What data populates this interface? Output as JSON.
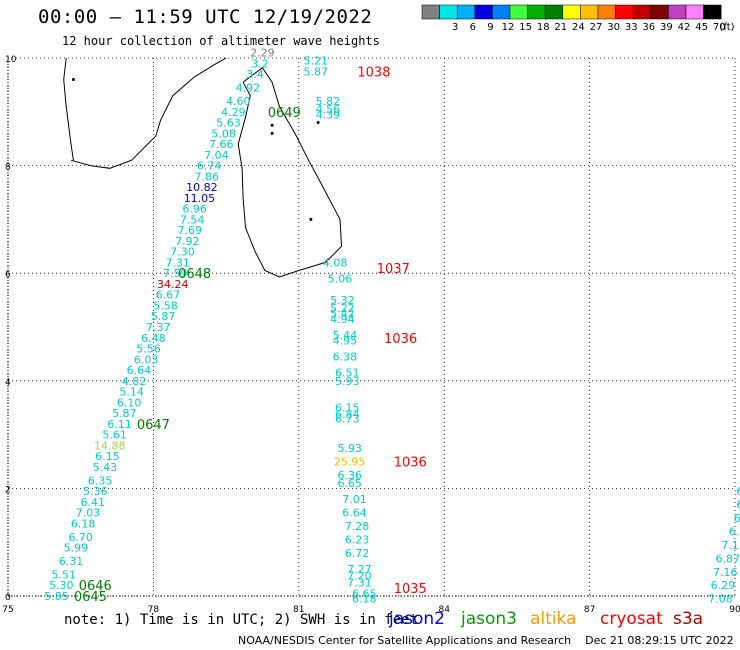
{
  "header": {
    "title": "00:00 – 11:59 UTC 12/19/2022",
    "subtitle": "12 hour collection of altimeter wave heights"
  },
  "legend": {
    "unit": "(ft)",
    "bins": [
      {
        "color": "#808080",
        "label": ""
      },
      {
        "color": "#00e5e5",
        "label": "3"
      },
      {
        "color": "#00b0ff",
        "label": "6"
      },
      {
        "color": "#0000e0",
        "label": "9"
      },
      {
        "color": "#0080ff",
        "label": "12"
      },
      {
        "color": "#40ff40",
        "label": "15"
      },
      {
        "color": "#00b000",
        "label": "18"
      },
      {
        "color": "#008000",
        "label": "21"
      },
      {
        "color": "#ffff00",
        "label": "24"
      },
      {
        "color": "#ffc000",
        "label": "27"
      },
      {
        "color": "#ff8000",
        "label": "30"
      },
      {
        "color": "#ff0000",
        "label": "33"
      },
      {
        "color": "#c00000",
        "label": "36"
      },
      {
        "color": "#800000",
        "label": "39"
      },
      {
        "color": "#c040c0",
        "label": "42"
      },
      {
        "color": "#ff80ff",
        "label": "45"
      },
      {
        "color": "#000000",
        "label": "70"
      }
    ]
  },
  "axes": {
    "x_ticks": [
      "75",
      "78",
      "81",
      "84",
      "87",
      "90"
    ],
    "y_ticks": [
      "0",
      "2",
      "4",
      "6",
      "8",
      "10"
    ]
  },
  "map": {
    "lon_range": [
      75,
      90
    ],
    "lat_range": [
      0,
      10
    ],
    "land": [
      {
        "name": "india-tip",
        "points": [
          [
            76.3,
            8.1
          ],
          [
            76.7,
            8.0
          ],
          [
            77.1,
            7.95
          ],
          [
            77.55,
            8.1
          ],
          [
            78.05,
            8.55
          ],
          [
            78.15,
            8.85
          ],
          [
            78.4,
            9.3
          ],
          [
            78.85,
            9.65
          ],
          [
            79.3,
            9.9
          ],
          [
            79.5,
            10.0
          ]
        ]
      },
      {
        "name": "india-west-coast",
        "points": [
          [
            76.2,
            10.0
          ],
          [
            76.15,
            9.6
          ],
          [
            76.2,
            9.1
          ],
          [
            76.3,
            8.4
          ],
          [
            76.35,
            8.1
          ]
        ]
      },
      {
        "name": "sri-lanka",
        "points": [
          [
            79.85,
            9.55
          ],
          [
            80.25,
            9.82
          ],
          [
            80.45,
            9.55
          ],
          [
            80.6,
            9.1
          ],
          [
            80.95,
            8.55
          ],
          [
            81.2,
            8.1
          ],
          [
            81.5,
            7.6
          ],
          [
            81.85,
            7.0
          ],
          [
            81.88,
            6.5
          ],
          [
            81.55,
            6.2
          ],
          [
            81.0,
            6.05
          ],
          [
            80.6,
            5.93
          ],
          [
            80.3,
            6.05
          ],
          [
            80.1,
            6.4
          ],
          [
            79.9,
            6.85
          ],
          [
            79.85,
            7.4
          ],
          [
            79.83,
            7.95
          ],
          [
            79.75,
            8.4
          ],
          [
            79.9,
            8.9
          ],
          [
            80.0,
            9.3
          ],
          [
            79.85,
            9.55
          ]
        ]
      }
    ],
    "tracks": [
      {
        "mission": "jason3",
        "start_label": "0645",
        "start_at": [
          76.7,
          0.0
        ],
        "extra_labels": [
          {
            "text": "0646",
            "at": [
              76.8,
              0.2
            ]
          },
          {
            "text": "0647",
            "at": [
              78.0,
              3.2
            ]
          },
          {
            "text": "0648",
            "at": [
              78.85,
              6.0
            ]
          },
          {
            "text": "0649",
            "at": [
              80.7,
              9.0
            ]
          }
        ],
        "points": [
          {
            "lon": 76.0,
            "lat": 0.0,
            "v": "5.85"
          },
          {
            "lon": 76.1,
            "lat": 0.2,
            "v": "5.30"
          },
          {
            "lon": 76.15,
            "lat": 0.4,
            "v": "5.51"
          },
          {
            "lon": 76.3,
            "lat": 0.65,
            "v": "6.31"
          },
          {
            "lon": 76.4,
            "lat": 0.9,
            "v": "5.99"
          },
          {
            "lon": 76.5,
            "lat": 1.1,
            "v": "6.70"
          },
          {
            "lon": 76.55,
            "lat": 1.35,
            "v": "6.18"
          },
          {
            "lon": 76.65,
            "lat": 1.55,
            "v": "7.03"
          },
          {
            "lon": 76.75,
            "lat": 1.75,
            "v": "6.41"
          },
          {
            "lon": 76.8,
            "lat": 1.95,
            "v": "5.36"
          },
          {
            "lon": 76.9,
            "lat": 2.15,
            "v": "6.35"
          },
          {
            "lon": 77.0,
            "lat": 2.4,
            "v": "5.43"
          },
          {
            "lon": 77.05,
            "lat": 2.6,
            "v": "6.15"
          },
          {
            "lon": 77.1,
            "lat": 2.8,
            "v": "14.88",
            "color": "#a0d050"
          },
          {
            "lon": 77.2,
            "lat": 3.0,
            "v": "5.61"
          },
          {
            "lon": 77.3,
            "lat": 3.2,
            "v": "6.11"
          },
          {
            "lon": 77.4,
            "lat": 3.4,
            "v": "5.87"
          },
          {
            "lon": 77.5,
            "lat": 3.6,
            "v": "6.10"
          },
          {
            "lon": 77.55,
            "lat": 3.8,
            "v": "5.14"
          },
          {
            "lon": 77.6,
            "lat": 4.0,
            "v": "4.82"
          },
          {
            "lon": 77.7,
            "lat": 4.2,
            "v": "6.64"
          },
          {
            "lon": 77.85,
            "lat": 4.4,
            "v": "6.03"
          },
          {
            "lon": 77.9,
            "lat": 4.6,
            "v": "5.56"
          },
          {
            "lon": 78.0,
            "lat": 4.8,
            "v": "6.48"
          },
          {
            "lon": 78.1,
            "lat": 5.0,
            "v": "7.37"
          },
          {
            "lon": 78.2,
            "lat": 5.2,
            "v": "5.87"
          },
          {
            "lon": 78.25,
            "lat": 5.4,
            "v": "5.58"
          },
          {
            "lon": 78.3,
            "lat": 5.6,
            "v": "6.67"
          },
          {
            "lon": 78.4,
            "lat": 5.8,
            "v": "34.24",
            "color": "#c00000"
          },
          {
            "lon": 78.45,
            "lat": 6.0,
            "v": "7.59"
          },
          {
            "lon": 78.5,
            "lat": 6.2,
            "v": "7.31"
          },
          {
            "lon": 78.6,
            "lat": 6.4,
            "v": "7.30"
          },
          {
            "lon": 78.7,
            "lat": 6.6,
            "v": "7.92"
          },
          {
            "lon": 78.75,
            "lat": 6.8,
            "v": "7.69"
          },
          {
            "lon": 78.8,
            "lat": 7.0,
            "v": "7.54"
          },
          {
            "lon": 78.85,
            "lat": 7.2,
            "v": "6.96"
          },
          {
            "lon": 78.95,
            "lat": 7.4,
            "v": "11.05",
            "color": "#0000c0"
          },
          {
            "lon": 79.0,
            "lat": 7.6,
            "v": "10.82",
            "color": "#0000c0"
          },
          {
            "lon": 79.1,
            "lat": 7.8,
            "v": "7.86"
          },
          {
            "lon": 79.15,
            "lat": 8.0,
            "v": "6.74"
          },
          {
            "lon": 79.3,
            "lat": 8.2,
            "v": "7.04"
          },
          {
            "lon": 79.4,
            "lat": 8.4,
            "v": "7.66"
          },
          {
            "lon": 79.45,
            "lat": 8.6,
            "v": "5.08"
          },
          {
            "lon": 79.55,
            "lat": 8.8,
            "v": "5.63"
          },
          {
            "lon": 79.65,
            "lat": 9.0,
            "v": "4.29"
          },
          {
            "lon": 79.75,
            "lat": 9.2,
            "v": "4.60"
          },
          {
            "lon": 79.95,
            "lat": 9.45,
            "v": "4.92"
          },
          {
            "lon": 80.1,
            "lat": 9.7,
            "v": "3.4"
          },
          {
            "lon": 80.2,
            "lat": 9.9,
            "v": "3.2"
          },
          {
            "lon": 80.25,
            "lat": 10.1,
            "v": "2.29",
            "color": "#808080"
          }
        ]
      },
      {
        "mission": "cryosat",
        "labels": [
          {
            "text": "1038",
            "at": [
              82.55,
              9.75
            ]
          },
          {
            "text": "1037",
            "at": [
              82.95,
              6.1
            ]
          },
          {
            "text": "1036",
            "at": [
              83.1,
              4.8
            ]
          },
          {
            "text": "1036",
            "at": [
              83.3,
              2.5
            ]
          },
          {
            "text": "1035",
            "at": [
              83.3,
              0.15
            ]
          }
        ]
      },
      {
        "mission": "cryosat-values",
        "points": [
          {
            "lon": 81.35,
            "lat": 9.95,
            "v": "5.21"
          },
          {
            "lon": 81.35,
            "lat": 9.75,
            "v": "5.87"
          },
          {
            "lon": 81.6,
            "lat": 9.2,
            "v": "5.82"
          },
          {
            "lon": 81.6,
            "lat": 9.05,
            "v": "4.56"
          },
          {
            "lon": 81.6,
            "lat": 8.95,
            "v": "4.39"
          },
          {
            "lon": 81.75,
            "lat": 6.2,
            "v": "4.08"
          },
          {
            "lon": 81.85,
            "lat": 5.9,
            "v": "5.06"
          },
          {
            "lon": 81.9,
            "lat": 5.5,
            "v": "5.32"
          },
          {
            "lon": 81.9,
            "lat": 5.35,
            "v": "5.22"
          },
          {
            "lon": 81.9,
            "lat": 5.25,
            "v": "5.42"
          },
          {
            "lon": 81.9,
            "lat": 5.15,
            "v": "4.94"
          },
          {
            "lon": 81.95,
            "lat": 4.85,
            "v": "5.44"
          },
          {
            "lon": 81.95,
            "lat": 4.75,
            "v": "4.95"
          },
          {
            "lon": 81.95,
            "lat": 4.45,
            "v": "6.38"
          },
          {
            "lon": 82.0,
            "lat": 4.15,
            "v": "6.51"
          },
          {
            "lon": 82.0,
            "lat": 4.0,
            "v": "5.93"
          },
          {
            "lon": 82.0,
            "lat": 3.5,
            "v": "6.15"
          },
          {
            "lon": 82.0,
            "lat": 3.38,
            "v": "6.84"
          },
          {
            "lon": 82.0,
            "lat": 3.3,
            "v": "6.73"
          },
          {
            "lon": 82.05,
            "lat": 2.75,
            "v": "5.93"
          },
          {
            "lon": 82.05,
            "lat": 2.5,
            "v": "25.95",
            "color": "#e8c000"
          },
          {
            "lon": 82.05,
            "lat": 2.25,
            "v": "6.36"
          },
          {
            "lon": 82.05,
            "lat": 2.1,
            "v": "6.65"
          },
          {
            "lon": 82.15,
            "lat": 1.8,
            "v": "7.01"
          },
          {
            "lon": 82.15,
            "lat": 1.55,
            "v": "6.64"
          },
          {
            "lon": 82.2,
            "lat": 1.3,
            "v": "7.28"
          },
          {
            "lon": 82.2,
            "lat": 1.05,
            "v": "6.23"
          },
          {
            "lon": 82.2,
            "lat": 0.8,
            "v": "6.72"
          },
          {
            "lon": 82.25,
            "lat": 0.5,
            "v": "7.27"
          },
          {
            "lon": 82.25,
            "lat": 0.38,
            "v": "7.20"
          },
          {
            "lon": 82.25,
            "lat": 0.25,
            "v": "7.31"
          },
          {
            "lon": 82.35,
            "lat": 0.05,
            "v": "6.65"
          },
          {
            "lon": 82.35,
            "lat": -0.05,
            "v": "6.18"
          }
        ]
      },
      {
        "mission": "edge",
        "points": [
          {
            "lon": 90.1,
            "lat": 1.95,
            "v": "6"
          },
          {
            "lon": 90.1,
            "lat": 1.7,
            "v": "6"
          },
          {
            "lon": 90.05,
            "lat": 1.45,
            "v": "6"
          },
          {
            "lon": 90.05,
            "lat": 1.2,
            "v": "6.7"
          },
          {
            "lon": 89.9,
            "lat": 0.95,
            "v": "7.1"
          },
          {
            "lon": 89.85,
            "lat": 0.7,
            "v": "6.87"
          },
          {
            "lon": 89.8,
            "lat": 0.45,
            "v": "7.16"
          },
          {
            "lon": 89.75,
            "lat": 0.2,
            "v": "6.29"
          },
          {
            "lon": 89.7,
            "lat": -0.05,
            "v": "7.08"
          }
        ]
      }
    ]
  },
  "footer": {
    "note": "note: 1) Time is in UTC; 2) SWH is in feet",
    "missions": [
      {
        "name": "jason2",
        "color": "#0000ff"
      },
      {
        "name": "jason3",
        "color": "#00a000"
      },
      {
        "name": "altika",
        "color": "#ff9900"
      },
      {
        "name": "cryosat",
        "color": "#ff0000"
      },
      {
        "name": "s3a",
        "color": "#b00000"
      }
    ],
    "credit": "NOAA/NESDIS Center for Satellite Applications and Research    Dec 21 08:29:15 UTC 2022"
  }
}
